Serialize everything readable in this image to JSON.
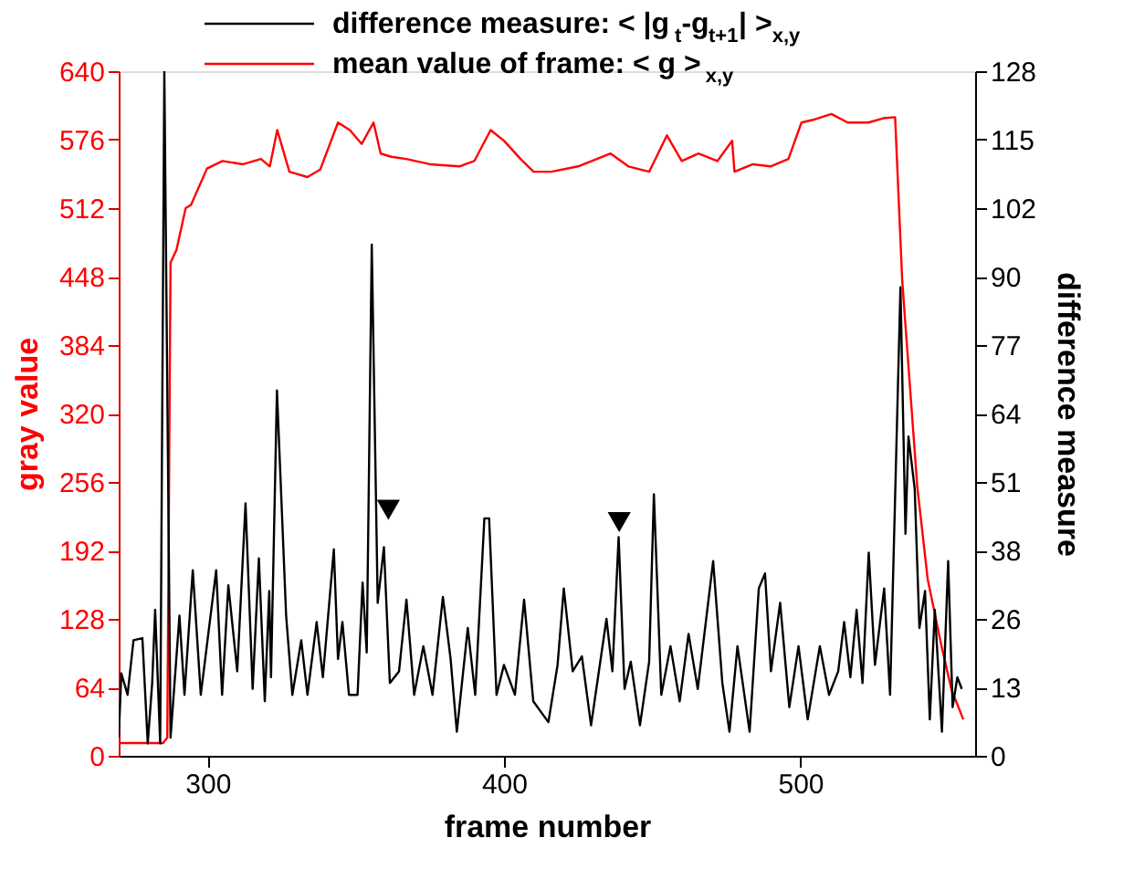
{
  "chart_data": {
    "type": "line",
    "xlabel": "frame number",
    "ylabel": "gray value",
    "y2label": "difference measure",
    "xlim": [
      270,
      559
    ],
    "xticks": [
      300,
      400,
      500
    ],
    "ylim": [
      0,
      640
    ],
    "yticks": [
      0,
      64,
      128,
      192,
      256,
      320,
      384,
      448,
      512,
      576,
      640
    ],
    "y2lim": [
      0,
      128
    ],
    "y2ticks": [
      0,
      {
        "value": 12.8,
        "label": "13"
      },
      {
        "value": 25.6,
        "label": "26"
      },
      {
        "value": 38.4,
        "label": "38"
      },
      {
        "value": 51.2,
        "label": "51"
      },
      64,
      {
        "value": 76.8,
        "label": "77"
      },
      {
        "value": 89.6,
        "label": "90"
      },
      {
        "value": 102.4,
        "label": "102"
      },
      {
        "value": 115.2,
        "label": "115"
      },
      128
    ],
    "legend": "top",
    "grid": false,
    "marker": "none",
    "line_style": "solid",
    "series": [
      {
        "name": "difference measure: < |g$_{t}$-g$_{t+1}$| >$_{x,y}$",
        "color": "#000000",
        "axis": "y2",
        "x": [
          270,
          270.9,
          273,
          275,
          278,
          279.8,
          281.3,
          282.3,
          284,
          285.4,
          287.5,
          290.5,
          292.2,
          295,
          297.7,
          302.9,
          304.9,
          307,
          310,
          312.8,
          315.2,
          317.3,
          319.3,
          320.8,
          321.4,
          323.4,
          326.5,
          328.6,
          331.6,
          333.7,
          336.8,
          338.9,
          342.6,
          344,
          345.5,
          347.7,
          350.6,
          352.3,
          353.7,
          355.4,
          357.4,
          359.5,
          361.5,
          364.6,
          367.1,
          369.7,
          372.8,
          375.9,
          379.4,
          382,
          384.1,
          387.8,
          390.3,
          393.4,
          395,
          397.5,
          400,
          403.7,
          406.8,
          409.9,
          415,
          418.1,
          420.2,
          423.2,
          426.3,
          429.4,
          434.6,
          436.6,
          438.7,
          440.7,
          442.8,
          445.9,
          449,
          450.6,
          453.1,
          456.2,
          459.3,
          462.3,
          465.4,
          470.6,
          473.7,
          476.1,
          478.8,
          482.9,
          486,
          488.1,
          490.1,
          493.2,
          496.3,
          499.4,
          502.5,
          506.6,
          509.7,
          512.8,
          514.8,
          516.9,
          519,
          521,
          523.1,
          525.2,
          528.3,
          530.3,
          533.8,
          535.5,
          536.5,
          538.6,
          540.2,
          542.1,
          543.7,
          545.4,
          547.8,
          549.9,
          551.4,
          553,
          554.5
        ],
        "values": [
          3.4,
          15.4,
          11.4,
          21.6,
          22,
          2.3,
          13.6,
          27.3,
          2.3,
          128,
          3.4,
          26.2,
          11.4,
          34.7,
          11.4,
          34.7,
          11.4,
          31.9,
          15.8,
          47.2,
          12.5,
          36.9,
          10.2,
          30.8,
          14.7,
          68.3,
          26.2,
          11.4,
          21.6,
          11.4,
          25,
          14.7,
          38.6,
          18.1,
          25,
          11.4,
          11.4,
          32.4,
          19.3,
          95.6,
          28.6,
          39,
          13.6,
          15.8,
          29.2,
          11.4,
          20.5,
          11.4,
          29.7,
          18.1,
          4.5,
          23.9,
          11.4,
          44.4,
          44.4,
          11.4,
          17,
          11.4,
          29.2,
          10.2,
          6.3,
          17,
          31.3,
          15.8,
          18.6,
          5.7,
          25.6,
          15.8,
          40.9,
          12.5,
          17.6,
          5.7,
          17.6,
          48.9,
          11.4,
          20.5,
          10.2,
          22.8,
          12.5,
          36.4,
          13.6,
          4.5,
          20.5,
          4.5,
          31.3,
          34.1,
          15.8,
          28.6,
          9.1,
          20.5,
          6.8,
          20.5,
          11.4,
          15.8,
          25,
          14.7,
          27.3,
          13.6,
          38,
          17,
          31.3,
          11.4,
          87.6,
          41.5,
          59.7,
          50,
          23.9,
          30.8,
          6.8,
          27.3,
          4.5,
          36.4,
          9.1,
          14.7,
          12.5
        ]
      },
      {
        "name": "mean value of frame: < g >$_{x,y}$",
        "color": "#ff0000",
        "x": [
          270,
          285,
          286.4,
          287.5,
          289.5,
          292.6,
          294.4,
          299.8,
          305,
          312,
          318,
          321,
          323.5,
          327.6,
          333.7,
          338,
          344,
          348,
          352,
          356,
          358.4,
          362,
          367,
          375,
          385,
          390,
          395.5,
          400,
          405.6,
          410,
          416,
          425,
          436,
          442,
          449,
          455,
          460,
          465.6,
          472,
          477,
          477.8,
          484,
          490,
          496,
          500.4,
          505,
          510.5,
          516,
          523,
          528,
          532,
          534.4,
          539.5,
          543,
          547.7,
          551,
          555
        ],
        "values": [
          12,
          12,
          17,
          461,
          473,
          512,
          515,
          549,
          556,
          553,
          558,
          551,
          585,
          546,
          541,
          548,
          592,
          585,
          572,
          592,
          563,
          560,
          558,
          553,
          551,
          556,
          585,
          575,
          558,
          546,
          546,
          551,
          563,
          551,
          546,
          580,
          556,
          563,
          556,
          575,
          546,
          553,
          551,
          558,
          592,
          595,
          600,
          592,
          592,
          596,
          597,
          444,
          251,
          165,
          102,
          62,
          34
        ]
      },
      {
        "type": "scatter",
        "marker": "triangle",
        "color": "#000000",
        "axis": "y2",
        "x": [
          361,
          438.9
        ],
        "values": [
          46,
          43.7
        ]
      }
    ]
  }
}
